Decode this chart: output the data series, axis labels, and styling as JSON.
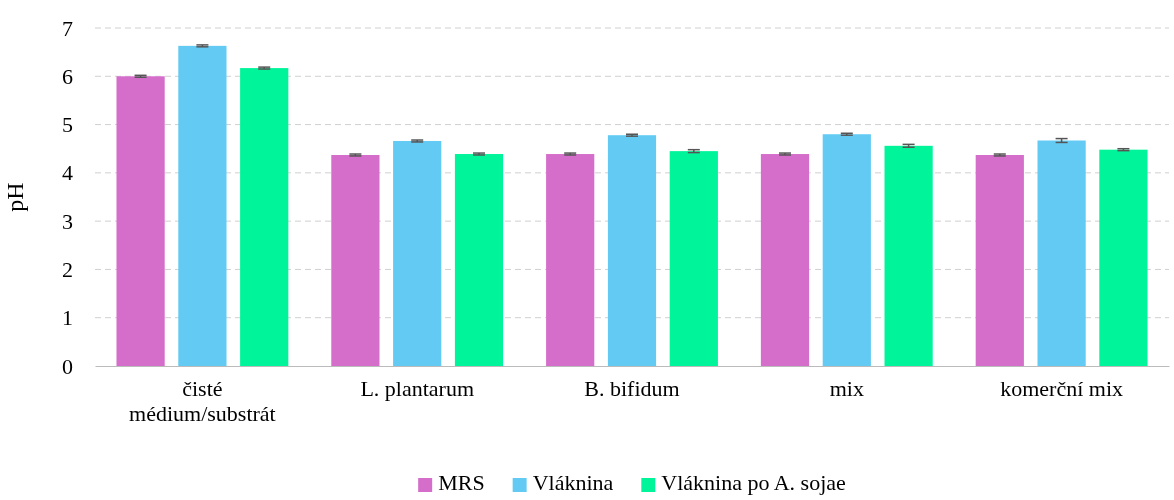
{
  "chart_data": {
    "type": "bar",
    "ylabel": "pH",
    "categories": [
      "čisté médium/substrát",
      "L. plantarum",
      "B. bifidum",
      "mix",
      "komerční mix"
    ],
    "series": [
      {
        "name": "MRS",
        "color": "#d56ecb",
        "values": [
          6.0,
          4.37,
          4.39,
          4.39,
          4.37
        ],
        "errors": [
          0.02,
          0.02,
          0.02,
          0.02,
          0.02
        ]
      },
      {
        "name": "Vláknina",
        "color": "#63cbf3",
        "values": [
          6.63,
          4.66,
          4.78,
          4.8,
          4.67
        ],
        "errors": [
          0.02,
          0.02,
          0.02,
          0.02,
          0.04
        ]
      },
      {
        "name": "Vláknina po A. sojae",
        "color": "#00f59a",
        "values": [
          6.17,
          4.39,
          4.45,
          4.56,
          4.48
        ],
        "errors": [
          0.02,
          0.02,
          0.03,
          0.03,
          0.02
        ]
      }
    ],
    "ylim": [
      0,
      7
    ],
    "yticks": [
      0,
      1,
      2,
      3,
      4,
      5,
      6,
      7
    ],
    "grid": "y",
    "legend": "bottom"
  }
}
